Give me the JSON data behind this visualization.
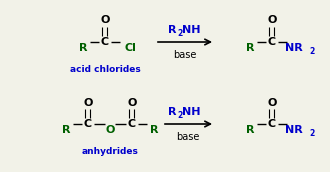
{
  "bg_color": "#f2f2e8",
  "black": "#000000",
  "green": "#006000",
  "blue": "#0000cc",
  "figsize": [
    3.3,
    1.72
  ],
  "dpi": 100,
  "label1": "acid chlorides",
  "label2": "anhydrides",
  "base": "base"
}
